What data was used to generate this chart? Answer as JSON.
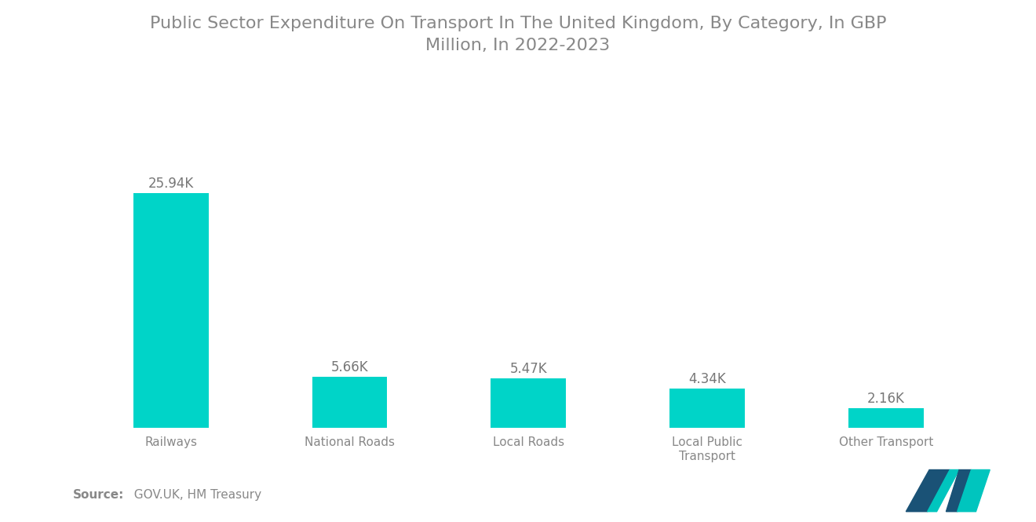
{
  "title": "Public Sector Expenditure On Transport In The United Kingdom, By Category, In GBP\nMillion, In 2022-2023",
  "categories": [
    "Railways",
    "National Roads",
    "Local Roads",
    "Local Public\nTransport",
    "Other Transport"
  ],
  "values": [
    25940,
    5660,
    5470,
    4340,
    2160
  ],
  "labels": [
    "25.94K",
    "5.66K",
    "5.47K",
    "4.34K",
    "2.16K"
  ],
  "bar_color": "#00D4C8",
  "background_color": "#ffffff",
  "source_label": "Source:",
  "source_text": "  GOV.UK, HM Treasury",
  "title_fontsize": 16,
  "label_fontsize": 12,
  "tick_fontsize": 11,
  "source_fontsize": 11,
  "ylim": [
    0,
    30000
  ],
  "title_color": "#888888",
  "tick_color": "#888888",
  "label_color": "#777777",
  "source_color": "#888888",
  "logo_color_left": "#2B6CB0",
  "logo_color_right": "#00C5BE"
}
